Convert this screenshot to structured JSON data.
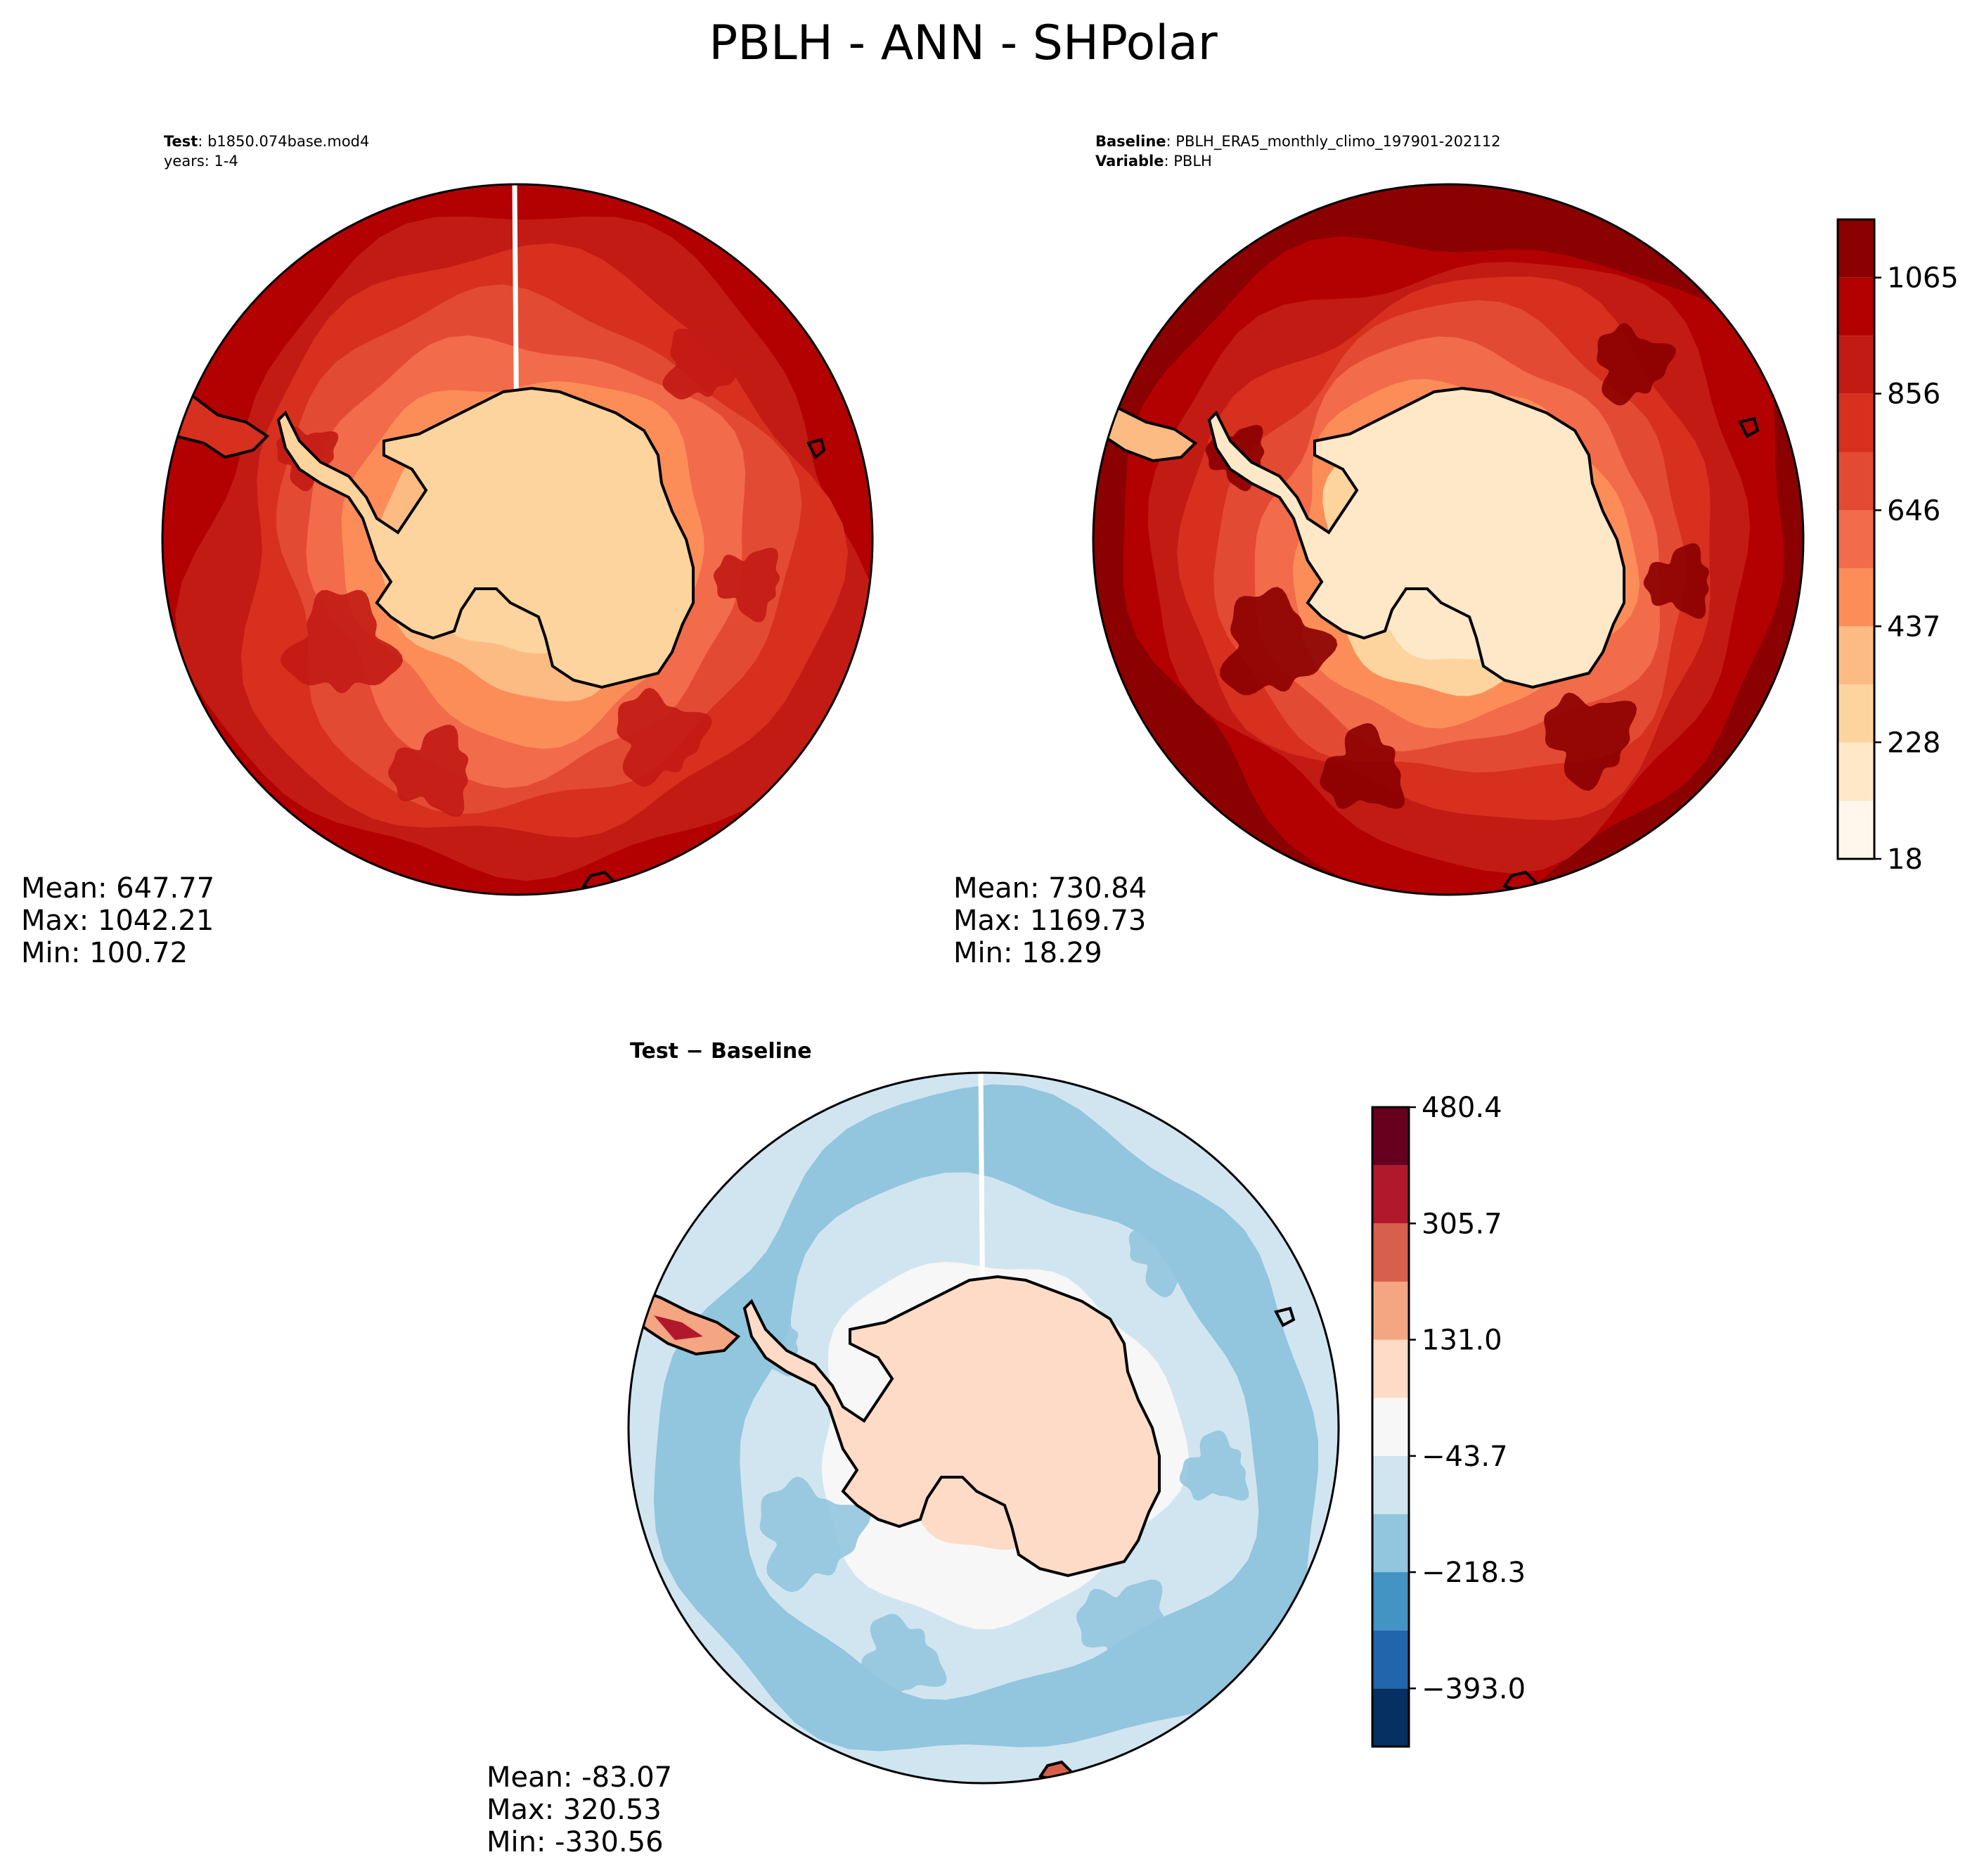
{
  "figure": {
    "title": "PBLH - ANN - SHPolar"
  },
  "chart_data": [
    {
      "type": "heatmap",
      "panel": "test",
      "projection": "south-polar-stereographic",
      "header": {
        "line1_bold": "Test",
        "line1_text": "b1850.074base.mod4",
        "line2_text": "years: 1-4"
      },
      "stats": {
        "mean": "Mean: 647.77",
        "max": "Max: 1042.21",
        "min": "Min: 100.72"
      },
      "colormap": "OrRd",
      "ocean_level": 8,
      "outer_level": 9,
      "ring_levels": [
        8,
        7,
        6,
        5,
        4,
        3,
        2
      ]
    },
    {
      "type": "heatmap",
      "panel": "baseline",
      "projection": "south-polar-stereographic",
      "header": {
        "line1_bold": "Baseline",
        "line1_text": "PBLH_ERA5_monthly_climo_197901-202112",
        "line2_bold": "Variable",
        "line2_text": "PBLH"
      },
      "stats": {
        "mean": "Mean: 730.84",
        "max": "Max: 1169.73",
        "min": "Min: 18.29"
      },
      "colormap": "OrRd",
      "ocean_level": 10,
      "outer_level": 10,
      "ring_levels": [
        9,
        8,
        7,
        6,
        5,
        4,
        2,
        1
      ]
    },
    {
      "type": "heatmap",
      "panel": "difference",
      "projection": "south-polar-stereographic",
      "header": {
        "title_bold": "Test − Baseline"
      },
      "stats": {
        "mean": "Mean: -83.07",
        "max": "Max: 320.53",
        "min": "Min: -330.56"
      },
      "colormap": "RdBu_r",
      "ocean_level": 3,
      "outer_level": 4,
      "ring_levels": [
        3,
        4,
        5,
        6
      ]
    }
  ],
  "colorbars": {
    "main": {
      "range": [
        18,
        1169.73
      ],
      "levels": [
        18,
        122.5,
        227.9,
        332.4,
        436.9,
        541.4,
        645.9,
        750.4,
        855.9,
        960.4,
        1064.9,
        1169.73
      ],
      "tick_values": [
        18,
        228,
        437,
        646,
        856,
        1065
      ],
      "tick_labels": [
        "18",
        "228",
        "437",
        "646",
        "856",
        "1065"
      ],
      "colors": [
        "#fff7ec",
        "#fee8c8",
        "#fdd49e",
        "#fdbb84",
        "#fc8d59",
        "#f26b4a",
        "#e34a33",
        "#d7301f",
        "#c21b14",
        "#b30000",
        "#8b0000"
      ]
    },
    "diff": {
      "range": [
        -480.4,
        480.4
      ],
      "levels": [
        -480.4,
        -393.0,
        -305.7,
        -218.3,
        -131.0,
        -43.7,
        43.7,
        131.0,
        218.3,
        305.7,
        393.0,
        480.4
      ],
      "tick_values": [
        -393.0,
        -218.3,
        -43.7,
        131.0,
        305.7,
        480.4
      ],
      "tick_labels": [
        "−393.0",
        "−218.3",
        "−43.7",
        "131.0",
        "305.7",
        "480.4"
      ],
      "colors": [
        "#053061",
        "#2166ac",
        "#4393c3",
        "#92c5de",
        "#d1e5f0",
        "#f7f7f7",
        "#fddbc7",
        "#f4a582",
        "#d6604d",
        "#b2182b",
        "#67001f"
      ]
    }
  }
}
